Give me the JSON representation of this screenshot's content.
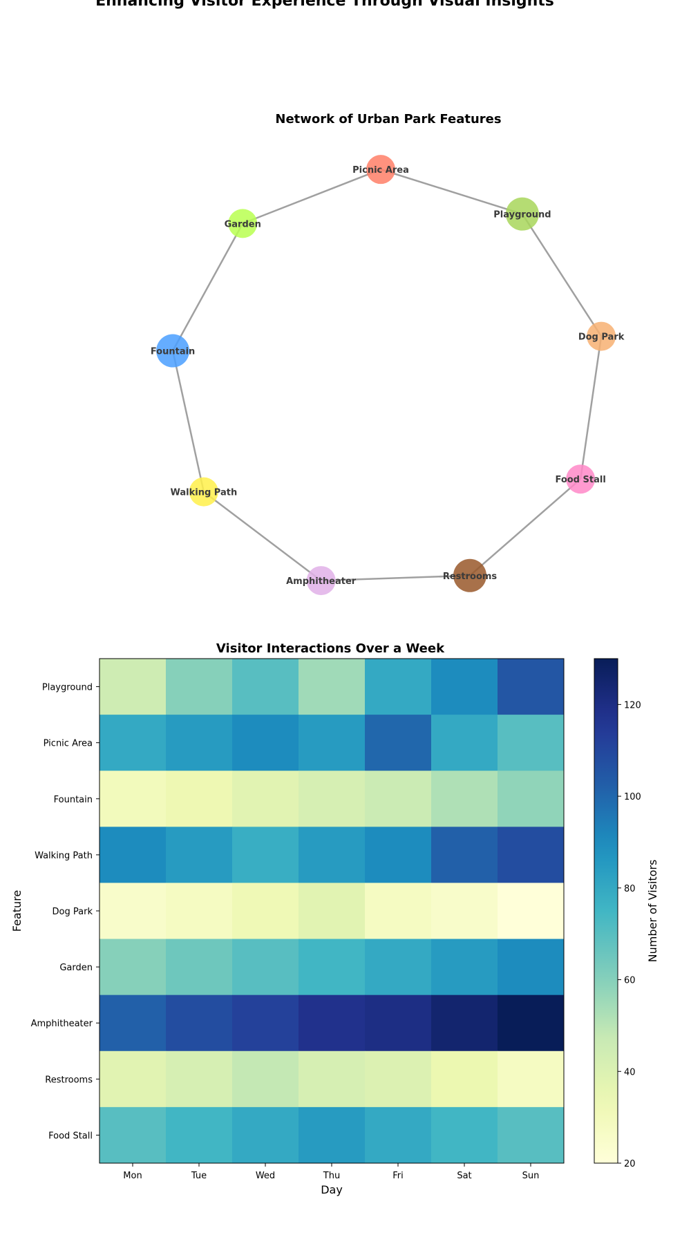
{
  "suptitle": "Enhancing Visitor Experience Through Visual Insights",
  "chart_data": [
    {
      "type": "network",
      "title": "Network of Urban Park Features",
      "nodes": [
        {
          "name": "Picnic Area",
          "color": "#ff7f67"
        },
        {
          "name": "Playground",
          "color": "#a8d65a"
        },
        {
          "name": "Dog Park",
          "color": "#f7b072"
        },
        {
          "name": "Food Stall",
          "color": "#ff88c8"
        },
        {
          "name": "Restrooms",
          "color": "#99582a"
        },
        {
          "name": "Amphitheater",
          "color": "#e0b0e8"
        },
        {
          "name": "Walking Path",
          "color": "#fff04a"
        },
        {
          "name": "Fountain",
          "color": "#4a9fff"
        },
        {
          "name": "Garden",
          "color": "#b8ff50"
        }
      ],
      "edges": [
        [
          "Picnic Area",
          "Playground"
        ],
        [
          "Playground",
          "Dog Park"
        ],
        [
          "Dog Park",
          "Food Stall"
        ],
        [
          "Food Stall",
          "Restrooms"
        ],
        [
          "Restrooms",
          "Amphitheater"
        ],
        [
          "Amphitheater",
          "Walking Path"
        ],
        [
          "Walking Path",
          "Fountain"
        ],
        [
          "Fountain",
          "Garden"
        ],
        [
          "Garden",
          "Picnic Area"
        ]
      ],
      "edge_color": "#a0a0a0"
    },
    {
      "type": "heatmap",
      "title": "Visitor Interactions Over a Week",
      "xlabel": "Day",
      "ylabel": "Feature",
      "x": [
        "Mon",
        "Tue",
        "Wed",
        "Thu",
        "Fri",
        "Sat",
        "Sun"
      ],
      "y": [
        "Playground",
        "Picnic Area",
        "Fountain",
        "Walking Path",
        "Dog Park",
        "Garden",
        "Amphitheater",
        "Restrooms",
        "Food Stall"
      ],
      "values": [
        [
          45,
          60,
          70,
          55,
          80,
          90,
          105
        ],
        [
          80,
          85,
          90,
          85,
          100,
          80,
          70
        ],
        [
          30,
          33,
          38,
          42,
          46,
          52,
          58
        ],
        [
          90,
          85,
          78,
          85,
          90,
          102,
          108
        ],
        [
          25,
          28,
          32,
          38,
          28,
          25,
          20
        ],
        [
          60,
          65,
          70,
          75,
          80,
          85,
          90
        ],
        [
          102,
          108,
          112,
          118,
          120,
          125,
          130
        ],
        [
          38,
          42,
          48,
          42,
          40,
          34,
          28
        ],
        [
          70,
          75,
          80,
          85,
          80,
          75,
          70
        ]
      ],
      "colormap": "YlGnBu",
      "colorbar": {
        "label": "Number of Visitors",
        "range": [
          20,
          130
        ],
        "ticks": [
          20,
          40,
          60,
          80,
          100,
          120
        ]
      }
    }
  ]
}
